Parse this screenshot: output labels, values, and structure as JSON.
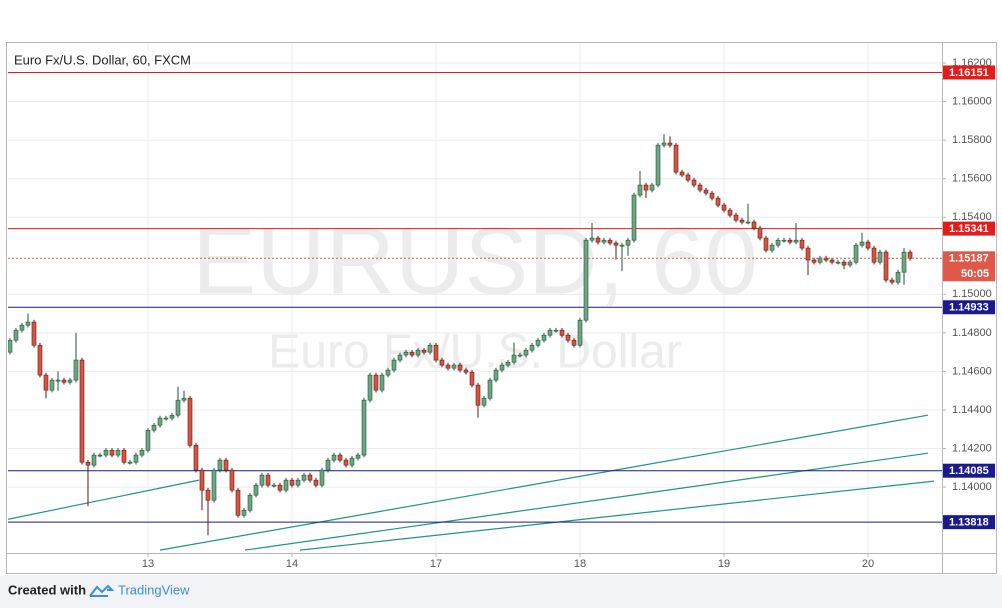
{
  "chart_data": {
    "type": "candlestick",
    "title": "Euro Fx/U.S. Dollar, 60, FXCM",
    "watermark": "EURUSD, 60",
    "watermark_subtitle": "Euro Fx/U.S. Dollar",
    "up_color": "#6ba583",
    "down_color": "#d75442",
    "grid": true,
    "xlim": [
      0.67,
      156.33
    ],
    "ylim": [
      1.13658,
      1.16304
    ],
    "xticks": [
      {
        "value": 24,
        "label": "13"
      },
      {
        "value": 48,
        "label": "14"
      },
      {
        "value": 72,
        "label": "17"
      },
      {
        "value": 96,
        "label": "18"
      },
      {
        "value": 120,
        "label": "19"
      },
      {
        "value": 144,
        "label": "20"
      }
    ],
    "yticks": [
      {
        "value": 1.162,
        "label": "1.16200"
      },
      {
        "value": 1.16,
        "label": "1.16000"
      },
      {
        "value": 1.158,
        "label": "1.15800"
      },
      {
        "value": 1.156,
        "label": "1.15600"
      },
      {
        "value": 1.154,
        "label": "1.15400"
      },
      {
        "value": 1.15,
        "label": "1.15000"
      },
      {
        "value": 1.148,
        "label": "1.14800"
      },
      {
        "value": 1.146,
        "label": "1.14600"
      },
      {
        "value": 1.144,
        "label": "1.14400"
      },
      {
        "value": 1.142,
        "label": "1.14200"
      },
      {
        "value": 1.14,
        "label": "1.14000"
      }
    ],
    "levels": [
      {
        "value": 1.16151,
        "label": "1.16151",
        "color": "#e31b1b"
      },
      {
        "value": 1.15341,
        "label": "1.15341",
        "color": "#e31b1b"
      },
      {
        "value": 1.14933,
        "label": "1.14933",
        "color": "#1a1a8c"
      },
      {
        "value": 1.14085,
        "label": "1.14085",
        "color": "#1a1a8c"
      },
      {
        "value": 1.13818,
        "label": "1.13818",
        "color": "#1a1a8c"
      }
    ],
    "last_price": {
      "value": 1.15187,
      "label": "1.15187",
      "color": "#e0584a"
    },
    "countdown": "50:05",
    "trend_color": "#1f9488",
    "trend_lines": [
      {
        "x": [
          0.67,
          32.5
        ],
        "y": [
          1.13833,
          1.14036
        ]
      },
      {
        "x": [
          26,
          154
        ],
        "y": [
          1.13673,
          1.14373
        ]
      },
      {
        "x": [
          40.17,
          154
        ],
        "y": [
          1.13673,
          1.14176
        ]
      },
      {
        "x": [
          49.33,
          155
        ],
        "y": [
          1.13673,
          1.14031
        ]
      }
    ],
    "x": [
      1,
      2,
      3,
      4,
      5,
      6,
      7,
      8,
      9,
      10,
      11,
      12,
      13,
      14,
      15,
      16,
      17,
      18,
      19,
      20,
      21,
      22,
      23,
      24,
      25,
      26,
      27,
      28,
      29,
      30,
      31,
      32,
      33,
      34,
      35,
      36,
      37,
      38,
      39,
      40,
      41,
      42,
      43,
      44,
      45,
      46,
      47,
      48,
      49,
      50,
      51,
      52,
      53,
      54,
      55,
      56,
      57,
      58,
      59,
      60,
      61,
      62,
      63,
      64,
      65,
      66,
      67,
      68,
      69,
      70,
      71,
      72,
      73,
      74,
      75,
      76,
      77,
      78,
      79,
      80,
      81,
      82,
      83,
      84,
      85,
      86,
      87,
      88,
      89,
      90,
      91,
      92,
      93,
      94,
      95,
      96,
      97,
      98,
      99,
      100,
      101,
      102,
      103,
      104,
      105,
      106,
      107,
      108,
      109,
      110,
      111,
      112,
      113,
      114,
      115,
      116,
      117,
      118,
      119,
      120,
      121,
      122,
      123,
      124,
      125,
      126,
      127,
      128,
      129,
      130,
      131,
      132,
      133,
      134,
      135,
      136,
      137,
      138,
      139,
      140,
      141,
      142,
      143,
      144,
      145,
      146,
      147,
      148,
      149,
      150,
      151
    ],
    "candles": [
      [
        1.147,
        1.14774,
        1.14688,
        1.14762
      ],
      [
        1.14762,
        1.14826,
        1.1475,
        1.14814
      ],
      [
        1.14814,
        1.14852,
        1.14802,
        1.1484
      ],
      [
        1.1484,
        1.149,
        1.14828,
        1.14856
      ],
      [
        1.14856,
        1.14868,
        1.14724,
        1.14736
      ],
      [
        1.14736,
        1.14748,
        1.14569,
        1.14581
      ],
      [
        1.14581,
        1.14593,
        1.1446,
        1.14503
      ],
      [
        1.14503,
        1.14567,
        1.14491,
        1.14555
      ],
      [
        1.14555,
        1.146,
        1.145,
        1.14555
      ],
      [
        1.14555,
        1.14567,
        1.14532,
        1.14544
      ],
      [
        1.14544,
        1.14567,
        1.14532,
        1.14555
      ],
      [
        1.14555,
        1.148,
        1.14543,
        1.14659
      ],
      [
        1.14659,
        1.14671,
        1.14117,
        1.14129
      ],
      [
        1.14129,
        1.14141,
        1.139,
        1.14114
      ],
      [
        1.14114,
        1.14178,
        1.14102,
        1.14166
      ],
      [
        1.14166,
        1.14178,
        1.14154,
        1.14166
      ],
      [
        1.14166,
        1.14203,
        1.14154,
        1.14191
      ],
      [
        1.14191,
        1.14203,
        1.14154,
        1.14166
      ],
      [
        1.14166,
        1.14203,
        1.14154,
        1.14191
      ],
      [
        1.14191,
        1.14203,
        1.14117,
        1.14129
      ],
      [
        1.14129,
        1.14141,
        1.14117,
        1.14129
      ],
      [
        1.14129,
        1.14178,
        1.14117,
        1.14166
      ],
      [
        1.14166,
        1.14203,
        1.14154,
        1.14191
      ],
      [
        1.14191,
        1.14307,
        1.14179,
        1.14295
      ],
      [
        1.14295,
        1.14333,
        1.14283,
        1.14321
      ],
      [
        1.14321,
        1.1437,
        1.14309,
        1.14358
      ],
      [
        1.14358,
        1.1437,
        1.14346,
        1.14358
      ],
      [
        1.14358,
        1.14385,
        1.14346,
        1.14373
      ],
      [
        1.14373,
        1.1452,
        1.14361,
        1.14451
      ],
      [
        1.14451,
        1.145,
        1.14439,
        1.14461
      ],
      [
        1.14461,
        1.14473,
        1.14205,
        1.14217
      ],
      [
        1.14217,
        1.14229,
        1.14076,
        1.14088
      ],
      [
        1.14088,
        1.141,
        1.1388,
        1.13984
      ],
      [
        1.13984,
        1.13996,
        1.1375,
        1.13932
      ],
      [
        1.13932,
        1.141,
        1.1392,
        1.14088
      ],
      [
        1.14088,
        1.14152,
        1.14076,
        1.1414
      ],
      [
        1.1414,
        1.14152,
        1.14076,
        1.14088
      ],
      [
        1.14088,
        1.141,
        1.13972,
        1.13984
      ],
      [
        1.13984,
        1.13996,
        1.13842,
        1.13854
      ],
      [
        1.13854,
        1.13892,
        1.13842,
        1.1388
      ],
      [
        1.1388,
        1.1397,
        1.13868,
        1.13958
      ],
      [
        1.13958,
        1.14022,
        1.13946,
        1.1401
      ],
      [
        1.1401,
        1.14074,
        1.13998,
        1.14062
      ],
      [
        1.14062,
        1.14074,
        1.13998,
        1.1401
      ],
      [
        1.1401,
        1.14022,
        1.13998,
        1.1401
      ],
      [
        1.1401,
        1.14022,
        1.13972,
        1.13984
      ],
      [
        1.13984,
        1.14048,
        1.13972,
        1.14036
      ],
      [
        1.14036,
        1.14048,
        1.13998,
        1.1401
      ],
      [
        1.1401,
        1.14048,
        1.13998,
        1.14036
      ],
      [
        1.14036,
        1.14074,
        1.14024,
        1.14062
      ],
      [
        1.14062,
        1.14074,
        1.14024,
        1.14036
      ],
      [
        1.14036,
        1.14048,
        1.13998,
        1.1401
      ],
      [
        1.1401,
        1.141,
        1.13998,
        1.14088
      ],
      [
        1.14088,
        1.14152,
        1.14076,
        1.1414
      ],
      [
        1.1414,
        1.14178,
        1.14128,
        1.14166
      ],
      [
        1.14166,
        1.14178,
        1.14128,
        1.1414
      ],
      [
        1.1414,
        1.14152,
        1.14102,
        1.14114
      ],
      [
        1.14114,
        1.14162,
        1.14102,
        1.1415
      ],
      [
        1.1415,
        1.14178,
        1.14138,
        1.14166
      ],
      [
        1.14166,
        1.14463,
        1.14154,
        1.14451
      ],
      [
        1.14451,
        1.14593,
        1.14439,
        1.14581
      ],
      [
        1.14581,
        1.14593,
        1.14491,
        1.14503
      ],
      [
        1.14503,
        1.14593,
        1.14491,
        1.14581
      ],
      [
        1.14581,
        1.14619,
        1.14569,
        1.14607
      ],
      [
        1.14607,
        1.14671,
        1.14595,
        1.14659
      ],
      [
        1.14659,
        1.14697,
        1.14647,
        1.14685
      ],
      [
        1.14685,
        1.14712,
        1.14673,
        1.147
      ],
      [
        1.147,
        1.14712,
        1.14673,
        1.14685
      ],
      [
        1.14685,
        1.14722,
        1.14673,
        1.1471
      ],
      [
        1.1471,
        1.14722,
        1.14688,
        1.147
      ],
      [
        1.147,
        1.14748,
        1.14688,
        1.14736
      ],
      [
        1.14736,
        1.14748,
        1.14647,
        1.14659
      ],
      [
        1.14659,
        1.14671,
        1.14621,
        1.14633
      ],
      [
        1.14633,
        1.14645,
        1.14605,
        1.14617
      ],
      [
        1.14617,
        1.14645,
        1.14605,
        1.14633
      ],
      [
        1.14633,
        1.14645,
        1.14595,
        1.14607
      ],
      [
        1.14607,
        1.14619,
        1.14584,
        1.14596
      ],
      [
        1.14596,
        1.14608,
        1.14517,
        1.14529
      ],
      [
        1.14529,
        1.14541,
        1.1436,
        1.14425
      ],
      [
        1.14425,
        1.14473,
        1.14413,
        1.14461
      ],
      [
        1.14461,
        1.14567,
        1.14449,
        1.14555
      ],
      [
        1.14555,
        1.14619,
        1.14543,
        1.14607
      ],
      [
        1.14607,
        1.14645,
        1.14595,
        1.14633
      ],
      [
        1.14633,
        1.1466,
        1.14621,
        1.14648
      ],
      [
        1.14648,
        1.1475,
        1.14636,
        1.14685
      ],
      [
        1.14685,
        1.14697,
        1.14673,
        1.14685
      ],
      [
        1.14685,
        1.14722,
        1.14673,
        1.1471
      ],
      [
        1.1471,
        1.14748,
        1.14698,
        1.14736
      ],
      [
        1.14736,
        1.14774,
        1.14724,
        1.14762
      ],
      [
        1.14762,
        1.148,
        1.1475,
        1.14788
      ],
      [
        1.14788,
        1.14826,
        1.14776,
        1.14814
      ],
      [
        1.14814,
        1.14826,
        1.14802,
        1.14814
      ],
      [
        1.14814,
        1.14826,
        1.14776,
        1.14788
      ],
      [
        1.14788,
        1.148,
        1.1475,
        1.14762
      ],
      [
        1.14762,
        1.14774,
        1.14724,
        1.14736
      ],
      [
        1.14736,
        1.14878,
        1.14724,
        1.14866
      ],
      [
        1.14866,
        1.15293,
        1.14854,
        1.15281
      ],
      [
        1.15281,
        1.1537,
        1.15269,
        1.15292
      ],
      [
        1.15292,
        1.15304,
        1.15259,
        1.15271
      ],
      [
        1.15271,
        1.15293,
        1.15259,
        1.15281
      ],
      [
        1.15281,
        1.15293,
        1.15254,
        1.15266
      ],
      [
        1.15266,
        1.15278,
        1.1518,
        1.15255
      ],
      [
        1.15255,
        1.15267,
        1.1512,
        1.15255
      ],
      [
        1.15255,
        1.15293,
        1.152,
        1.15281
      ],
      [
        1.15281,
        1.15527,
        1.15269,
        1.15515
      ],
      [
        1.15515,
        1.1564,
        1.15503,
        1.15567
      ],
      [
        1.15567,
        1.15579,
        1.155,
        1.15541
      ],
      [
        1.15541,
        1.15579,
        1.15529,
        1.15567
      ],
      [
        1.15567,
        1.15786,
        1.15555,
        1.15774
      ],
      [
        1.15774,
        1.1583,
        1.15762,
        1.15785
      ],
      [
        1.15785,
        1.1582,
        1.15762,
        1.15774
      ],
      [
        1.15774,
        1.15786,
        1.15622,
        1.15634
      ],
      [
        1.15634,
        1.15646,
        1.15607,
        1.15619
      ],
      [
        1.15619,
        1.15631,
        1.15581,
        1.15593
      ],
      [
        1.15593,
        1.15605,
        1.15555,
        1.15567
      ],
      [
        1.15567,
        1.15579,
        1.15529,
        1.15541
      ],
      [
        1.15541,
        1.15553,
        1.15513,
        1.15525
      ],
      [
        1.15525,
        1.15537,
        1.15487,
        1.15499
      ],
      [
        1.15499,
        1.15511,
        1.15451,
        1.15463
      ],
      [
        1.15463,
        1.15475,
        1.15425,
        1.15437
      ],
      [
        1.15437,
        1.15449,
        1.15399,
        1.15411
      ],
      [
        1.15411,
        1.15423,
        1.15373,
        1.15385
      ],
      [
        1.15385,
        1.15397,
        1.15363,
        1.15375
      ],
      [
        1.15375,
        1.1547,
        1.15363,
        1.15375
      ],
      [
        1.15375,
        1.15387,
        1.15332,
        1.15344
      ],
      [
        1.15344,
        1.15356,
        1.1528,
        1.15292
      ],
      [
        1.15292,
        1.15304,
        1.15217,
        1.15229
      ],
      [
        1.15229,
        1.15267,
        1.15217,
        1.15255
      ],
      [
        1.15255,
        1.15293,
        1.15243,
        1.15281
      ],
      [
        1.15281,
        1.15293,
        1.15269,
        1.15281
      ],
      [
        1.15281,
        1.15293,
        1.15259,
        1.15271
      ],
      [
        1.15271,
        1.1537,
        1.15259,
        1.15281
      ],
      [
        1.15281,
        1.15293,
        1.15228,
        1.1524
      ],
      [
        1.1524,
        1.15252,
        1.151,
        1.15178
      ],
      [
        1.15178,
        1.1519,
        1.15155,
        1.15167
      ],
      [
        1.15167,
        1.152,
        1.15155,
        1.15188
      ],
      [
        1.15188,
        1.152,
        1.15166,
        1.15178
      ],
      [
        1.15178,
        1.1519,
        1.15155,
        1.15167
      ],
      [
        1.15167,
        1.15179,
        1.15155,
        1.15167
      ],
      [
        1.15167,
        1.15179,
        1.1513,
        1.15152
      ],
      [
        1.15152,
        1.15179,
        1.1514,
        1.15167
      ],
      [
        1.15167,
        1.15267,
        1.15155,
        1.15255
      ],
      [
        1.15255,
        1.1532,
        1.15243,
        1.15271
      ],
      [
        1.15271,
        1.15283,
        1.15228,
        1.1524
      ],
      [
        1.1524,
        1.15252,
        1.15155,
        1.15167
      ],
      [
        1.15167,
        1.15231,
        1.15155,
        1.15219
      ],
      [
        1.15219,
        1.15231,
        1.15062,
        1.15074
      ],
      [
        1.15074,
        1.15086,
        1.15051,
        1.15063
      ],
      [
        1.15063,
        1.15127,
        1.15051,
        1.15115
      ],
      [
        1.15115,
        1.1524,
        1.1505,
        1.15219
      ],
      [
        1.15219,
        1.15231,
        1.15175,
        1.15187
      ]
    ]
  },
  "footer": {
    "created_with": "Created with",
    "brand": "TradingView"
  }
}
